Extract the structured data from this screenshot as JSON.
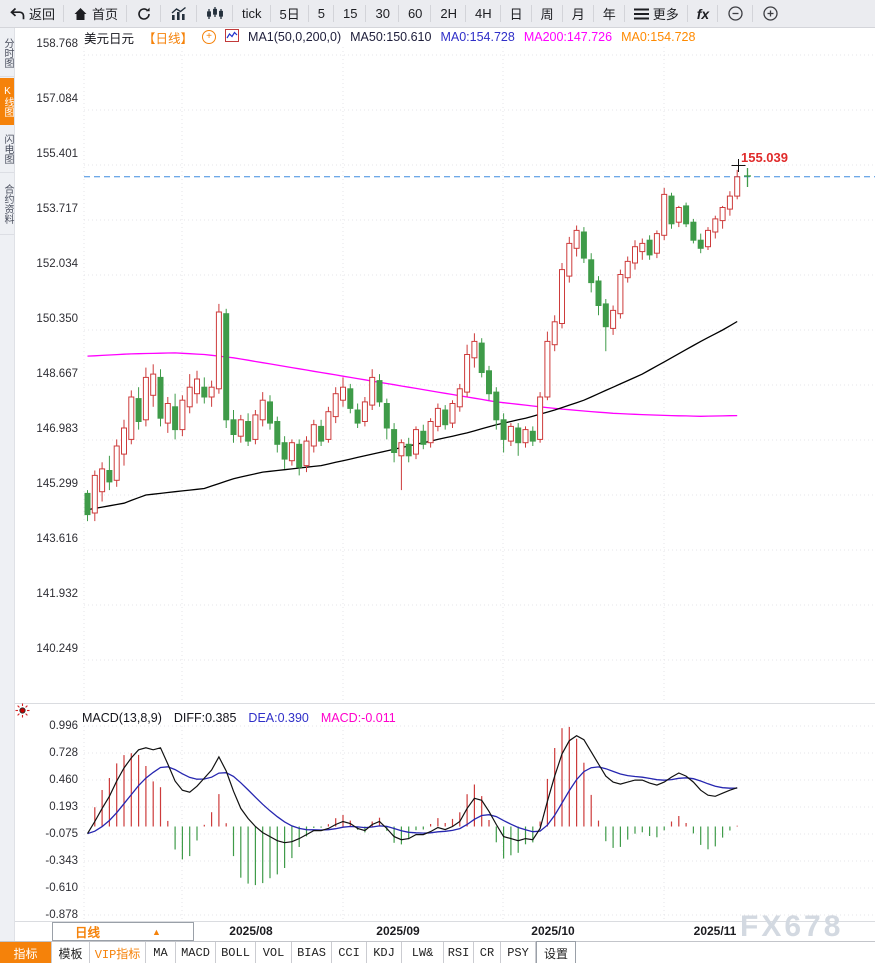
{
  "toolbar": {
    "items": [
      {
        "id": "back",
        "icon": "back-arrow",
        "label": "返回"
      },
      {
        "id": "home",
        "icon": "home",
        "label": "首页"
      },
      {
        "id": "refresh",
        "icon": "refresh",
        "label": ""
      },
      {
        "id": "bar-chart",
        "icon": "bar-chart",
        "label": ""
      },
      {
        "id": "candle-chart",
        "icon": "candle-chart",
        "label": ""
      },
      {
        "id": "tick",
        "label": "tick"
      },
      {
        "id": "5d",
        "label": "5日"
      },
      {
        "id": "m5",
        "label": "5"
      },
      {
        "id": "m15",
        "label": "15"
      },
      {
        "id": "m30",
        "label": "30"
      },
      {
        "id": "m60",
        "label": "60"
      },
      {
        "id": "h2",
        "label": "2H"
      },
      {
        "id": "h4",
        "label": "4H"
      },
      {
        "id": "day",
        "label": "日"
      },
      {
        "id": "week",
        "label": "周"
      },
      {
        "id": "month",
        "label": "月"
      },
      {
        "id": "year",
        "label": "年"
      },
      {
        "id": "more",
        "icon": "menu",
        "label": "更多"
      },
      {
        "id": "fx",
        "label": "fx"
      },
      {
        "id": "zoom-out",
        "icon": "zoom-out",
        "label": ""
      },
      {
        "id": "zoom-in",
        "icon": "zoom-in",
        "label": ""
      }
    ]
  },
  "sidebar": {
    "items": [
      {
        "label": "分时图",
        "selected": false
      },
      {
        "label": "K线图",
        "selected": true
      },
      {
        "label": "闪电图",
        "selected": false
      },
      {
        "label": "合约资料",
        "selected": false
      }
    ]
  },
  "chart_header": {
    "symbol": "美元日元",
    "period_tag": "【日线】",
    "ma_settings": "MA1(50,0,200,0)",
    "ma50": "MA50:150.610",
    "ma0_blue": "MA0:154.728",
    "ma200": "MA200:147.726",
    "ma0_orange": "MA0:154.728"
  },
  "price_marker": {
    "value": "155.039"
  },
  "macd_header": {
    "title": "MACD(13,8,9)",
    "diff": "DIFF:0.385",
    "dea": "DEA:0.390",
    "macd": "MACD:-0.011"
  },
  "bottom": {
    "period_button": {
      "label": "日线",
      "arrow": "▲"
    },
    "watermark": "FX678",
    "tabs": [
      {
        "label": "指标",
        "style": "active"
      },
      {
        "label": "模板",
        "style": ""
      },
      {
        "label": "VIP指标",
        "style": "vip"
      },
      {
        "label": "MA",
        "style": ""
      },
      {
        "label": "MACD",
        "style": ""
      },
      {
        "label": "BOLL",
        "style": ""
      },
      {
        "label": "VOL",
        "style": ""
      },
      {
        "label": "BIAS",
        "style": ""
      },
      {
        "label": "CCI",
        "style": ""
      },
      {
        "label": "KDJ",
        "style": ""
      },
      {
        "label": "LW&",
        "style": ""
      },
      {
        "label": "RSI",
        "style": ""
      },
      {
        "label": "CR",
        "style": ""
      },
      {
        "label": "PSY",
        "style": ""
      },
      {
        "label": "设置",
        "style": "boxed"
      }
    ]
  },
  "chart_data": {
    "type": "candlestick",
    "symbol": "美元日元 (USD/JPY)",
    "interval": "日线 daily",
    "price_axis_labels": [
      "158.768",
      "157.084",
      "155.401",
      "153.717",
      "152.034",
      "150.350",
      "148.667",
      "146.983",
      "145.299",
      "143.616",
      "141.932",
      "140.249"
    ],
    "x_axis_labels": [
      "2025/08",
      "2025/09",
      "2025/10",
      "2025/11"
    ],
    "last_price": 155.039,
    "ma50_last": 150.61,
    "ma200_last": 147.726,
    "candles_ohlc": [
      [
        145.35,
        145.45,
        144.5,
        144.7
      ],
      [
        144.75,
        146.05,
        144.5,
        145.9
      ],
      [
        145.4,
        146.3,
        145.1,
        146.1
      ],
      [
        146.05,
        146.5,
        145.45,
        145.7
      ],
      [
        145.75,
        147.0,
        145.55,
        146.8
      ],
      [
        146.55,
        147.6,
        146.2,
        147.35
      ],
      [
        147.0,
        148.5,
        146.85,
        148.3
      ],
      [
        148.25,
        148.6,
        147.3,
        147.55
      ],
      [
        147.6,
        149.2,
        147.4,
        148.9
      ],
      [
        148.35,
        149.3,
        148.0,
        149.0
      ],
      [
        148.9,
        149.15,
        147.4,
        147.65
      ],
      [
        147.5,
        148.3,
        147.2,
        148.1
      ],
      [
        148.0,
        148.4,
        147.0,
        147.3
      ],
      [
        147.3,
        148.35,
        147.1,
        148.2
      ],
      [
        148.0,
        149.0,
        147.8,
        148.6
      ],
      [
        148.4,
        149.1,
        148.1,
        148.85
      ],
      [
        148.6,
        148.9,
        148.1,
        148.3
      ],
      [
        148.3,
        148.8,
        148.0,
        148.6
      ],
      [
        148.55,
        151.15,
        148.4,
        150.9
      ],
      [
        150.85,
        151.0,
        147.35,
        147.6
      ],
      [
        147.6,
        147.9,
        146.9,
        147.15
      ],
      [
        147.1,
        147.75,
        146.9,
        147.6
      ],
      [
        147.55,
        147.8,
        146.8,
        146.95
      ],
      [
        147.0,
        147.9,
        146.85,
        147.75
      ],
      [
        147.6,
        148.45,
        147.4,
        148.2
      ],
      [
        148.15,
        148.35,
        147.3,
        147.5
      ],
      [
        147.55,
        147.7,
        146.6,
        146.85
      ],
      [
        146.9,
        147.1,
        146.1,
        146.4
      ],
      [
        146.35,
        147.0,
        146.2,
        146.9
      ],
      [
        146.85,
        147.0,
        145.9,
        146.15
      ],
      [
        146.2,
        147.1,
        146.0,
        146.95
      ],
      [
        146.8,
        147.6,
        146.6,
        147.45
      ],
      [
        147.4,
        147.6,
        146.8,
        146.95
      ],
      [
        147.0,
        148.0,
        146.9,
        147.85
      ],
      [
        147.7,
        148.6,
        147.5,
        148.4
      ],
      [
        148.2,
        148.9,
        148.0,
        148.6
      ],
      [
        148.55,
        148.7,
        147.8,
        147.95
      ],
      [
        147.9,
        148.1,
        147.35,
        147.5
      ],
      [
        147.55,
        148.3,
        147.4,
        148.15
      ],
      [
        148.05,
        149.15,
        147.9,
        148.9
      ],
      [
        148.8,
        149.0,
        148.0,
        148.15
      ],
      [
        148.1,
        148.25,
        147.0,
        147.35
      ],
      [
        147.3,
        147.5,
        146.3,
        146.6
      ],
      [
        146.5,
        147.0,
        145.45,
        146.9
      ],
      [
        146.85,
        147.05,
        146.3,
        146.5
      ],
      [
        146.55,
        147.4,
        146.4,
        147.3
      ],
      [
        147.25,
        147.45,
        146.7,
        146.85
      ],
      [
        146.9,
        147.65,
        146.75,
        147.55
      ],
      [
        147.4,
        148.1,
        147.25,
        147.95
      ],
      [
        147.9,
        148.05,
        147.3,
        147.45
      ],
      [
        147.5,
        148.2,
        147.35,
        148.1
      ],
      [
        148.0,
        148.7,
        147.85,
        148.55
      ],
      [
        148.45,
        149.9,
        148.3,
        149.6
      ],
      [
        149.5,
        150.25,
        149.2,
        150.0
      ],
      [
        149.95,
        150.1,
        148.9,
        149.05
      ],
      [
        149.1,
        149.25,
        148.2,
        148.4
      ],
      [
        148.45,
        148.6,
        147.3,
        147.6
      ],
      [
        147.6,
        147.8,
        146.6,
        147.0
      ],
      [
        146.95,
        147.5,
        146.8,
        147.4
      ],
      [
        147.35,
        147.5,
        146.5,
        146.9
      ],
      [
        146.9,
        147.4,
        146.75,
        147.3
      ],
      [
        147.25,
        147.4,
        146.8,
        146.95
      ],
      [
        147.0,
        148.45,
        146.9,
        148.3
      ],
      [
        148.3,
        150.3,
        148.2,
        150.0
      ],
      [
        149.9,
        150.8,
        149.7,
        150.6
      ],
      [
        150.55,
        152.4,
        150.4,
        152.2
      ],
      [
        152.0,
        153.2,
        151.8,
        153.0
      ],
      [
        152.85,
        153.55,
        152.6,
        153.4
      ],
      [
        153.35,
        153.5,
        152.4,
        152.55
      ],
      [
        152.5,
        152.7,
        151.5,
        151.8
      ],
      [
        151.85,
        152.0,
        150.8,
        151.1
      ],
      [
        151.15,
        151.3,
        149.7,
        150.45
      ],
      [
        150.4,
        151.1,
        150.2,
        150.95
      ],
      [
        150.85,
        152.2,
        150.7,
        152.05
      ],
      [
        151.95,
        152.6,
        151.8,
        152.45
      ],
      [
        152.4,
        153.1,
        152.2,
        152.9
      ],
      [
        152.75,
        153.15,
        152.5,
        153.0
      ],
      [
        153.1,
        153.25,
        152.5,
        152.65
      ],
      [
        152.7,
        153.4,
        152.55,
        153.3
      ],
      [
        153.25,
        154.7,
        153.1,
        154.5
      ],
      [
        154.45,
        154.55,
        153.45,
        153.6
      ],
      [
        153.65,
        154.15,
        153.5,
        154.1
      ],
      [
        154.15,
        154.25,
        153.5,
        153.6
      ],
      [
        153.65,
        153.75,
        153.0,
        153.1
      ],
      [
        153.1,
        153.3,
        152.7,
        152.85
      ],
      [
        152.9,
        153.5,
        152.8,
        153.4
      ],
      [
        153.35,
        153.85,
        153.15,
        153.75
      ],
      [
        153.7,
        154.15,
        153.45,
        154.1
      ],
      [
        154.05,
        154.6,
        153.85,
        154.45
      ],
      [
        154.45,
        155.25,
        154.35,
        155.04
      ]
    ],
    "ma50_points": [
      [
        0,
        144.85
      ],
      [
        5,
        145.05
      ],
      [
        8,
        145.3
      ],
      [
        12,
        145.4
      ],
      [
        16,
        145.5
      ],
      [
        20,
        145.8
      ],
      [
        24,
        146.0
      ],
      [
        28,
        146.1
      ],
      [
        32,
        146.2
      ],
      [
        36,
        146.4
      ],
      [
        40,
        146.6
      ],
      [
        44,
        146.8
      ],
      [
        48,
        147.0
      ],
      [
        52,
        147.2
      ],
      [
        56,
        147.45
      ],
      [
        60,
        147.65
      ],
      [
        64,
        147.9
      ],
      [
        68,
        148.2
      ],
      [
        72,
        148.6
      ],
      [
        76,
        149.0
      ],
      [
        80,
        149.5
      ],
      [
        84,
        150.0
      ],
      [
        87,
        150.35
      ],
      [
        89,
        150.61
      ]
    ],
    "ma200_points": [
      [
        0,
        149.55
      ],
      [
        6,
        149.62
      ],
      [
        12,
        149.65
      ],
      [
        16,
        149.6
      ],
      [
        20,
        149.5
      ],
      [
        24,
        149.35
      ],
      [
        28,
        149.2
      ],
      [
        32,
        149.05
      ],
      [
        36,
        148.9
      ],
      [
        40,
        148.75
      ],
      [
        44,
        148.6
      ],
      [
        48,
        148.45
      ],
      [
        52,
        148.3
      ],
      [
        56,
        148.15
      ],
      [
        60,
        148.05
      ],
      [
        64,
        147.95
      ],
      [
        68,
        147.87
      ],
      [
        72,
        147.8
      ],
      [
        76,
        147.76
      ],
      [
        80,
        147.73
      ],
      [
        84,
        147.71
      ],
      [
        89,
        147.73
      ]
    ],
    "macd": {
      "params": "13,8,9",
      "axis_labels": [
        "0.996",
        "0.728",
        "0.460",
        "0.193",
        "-0.075",
        "-0.343",
        "-0.610",
        "-0.878"
      ],
      "signal_period": 9,
      "hist_formula": "2*(diff-dea)",
      "last_diff": 0.385,
      "last_dea": 0.39,
      "last_macd": -0.011,
      "diff_series": [
        -0.07,
        0.05,
        0.18,
        0.3,
        0.45,
        0.58,
        0.68,
        0.76,
        0.78,
        0.76,
        0.78,
        0.62,
        0.45,
        0.36,
        0.34,
        0.4,
        0.48,
        0.56,
        0.69,
        0.55,
        0.35,
        0.18,
        0.08,
        0.0,
        -0.06,
        -0.1,
        -0.14,
        -0.16,
        -0.15,
        -0.12,
        -0.08,
        -0.04,
        -0.04,
        -0.02,
        0.02,
        0.05,
        0.03,
        -0.02,
        -0.04,
        0.02,
        0.05,
        -0.02,
        -0.1,
        -0.13,
        -0.12,
        -0.08,
        -0.08,
        -0.05,
        -0.01,
        -0.03,
        0.0,
        0.05,
        0.18,
        0.28,
        0.26,
        0.15,
        0.02,
        -0.1,
        -0.12,
        -0.14,
        -0.12,
        -0.13,
        -0.02,
        0.25,
        0.5,
        0.72,
        0.85,
        0.9,
        0.86,
        0.74,
        0.62,
        0.5,
        0.44,
        0.42,
        0.44,
        0.46,
        0.46,
        0.43,
        0.41,
        0.44,
        0.49,
        0.53,
        0.5,
        0.44,
        0.36,
        0.31,
        0.3,
        0.33,
        0.36,
        0.385
      ]
    },
    "colors": {
      "up": "#cd3b3b",
      "down": "#3f9b49",
      "ma50": "#000000",
      "ma200": "#ff00ff",
      "diff_line": "#111111",
      "dea_line": "#2626b0",
      "last_price_line": "#3f8cdf",
      "last_price_text": "#e02a2a",
      "accent_orange": "#f5820a",
      "grid": "#e4e4e8"
    }
  }
}
